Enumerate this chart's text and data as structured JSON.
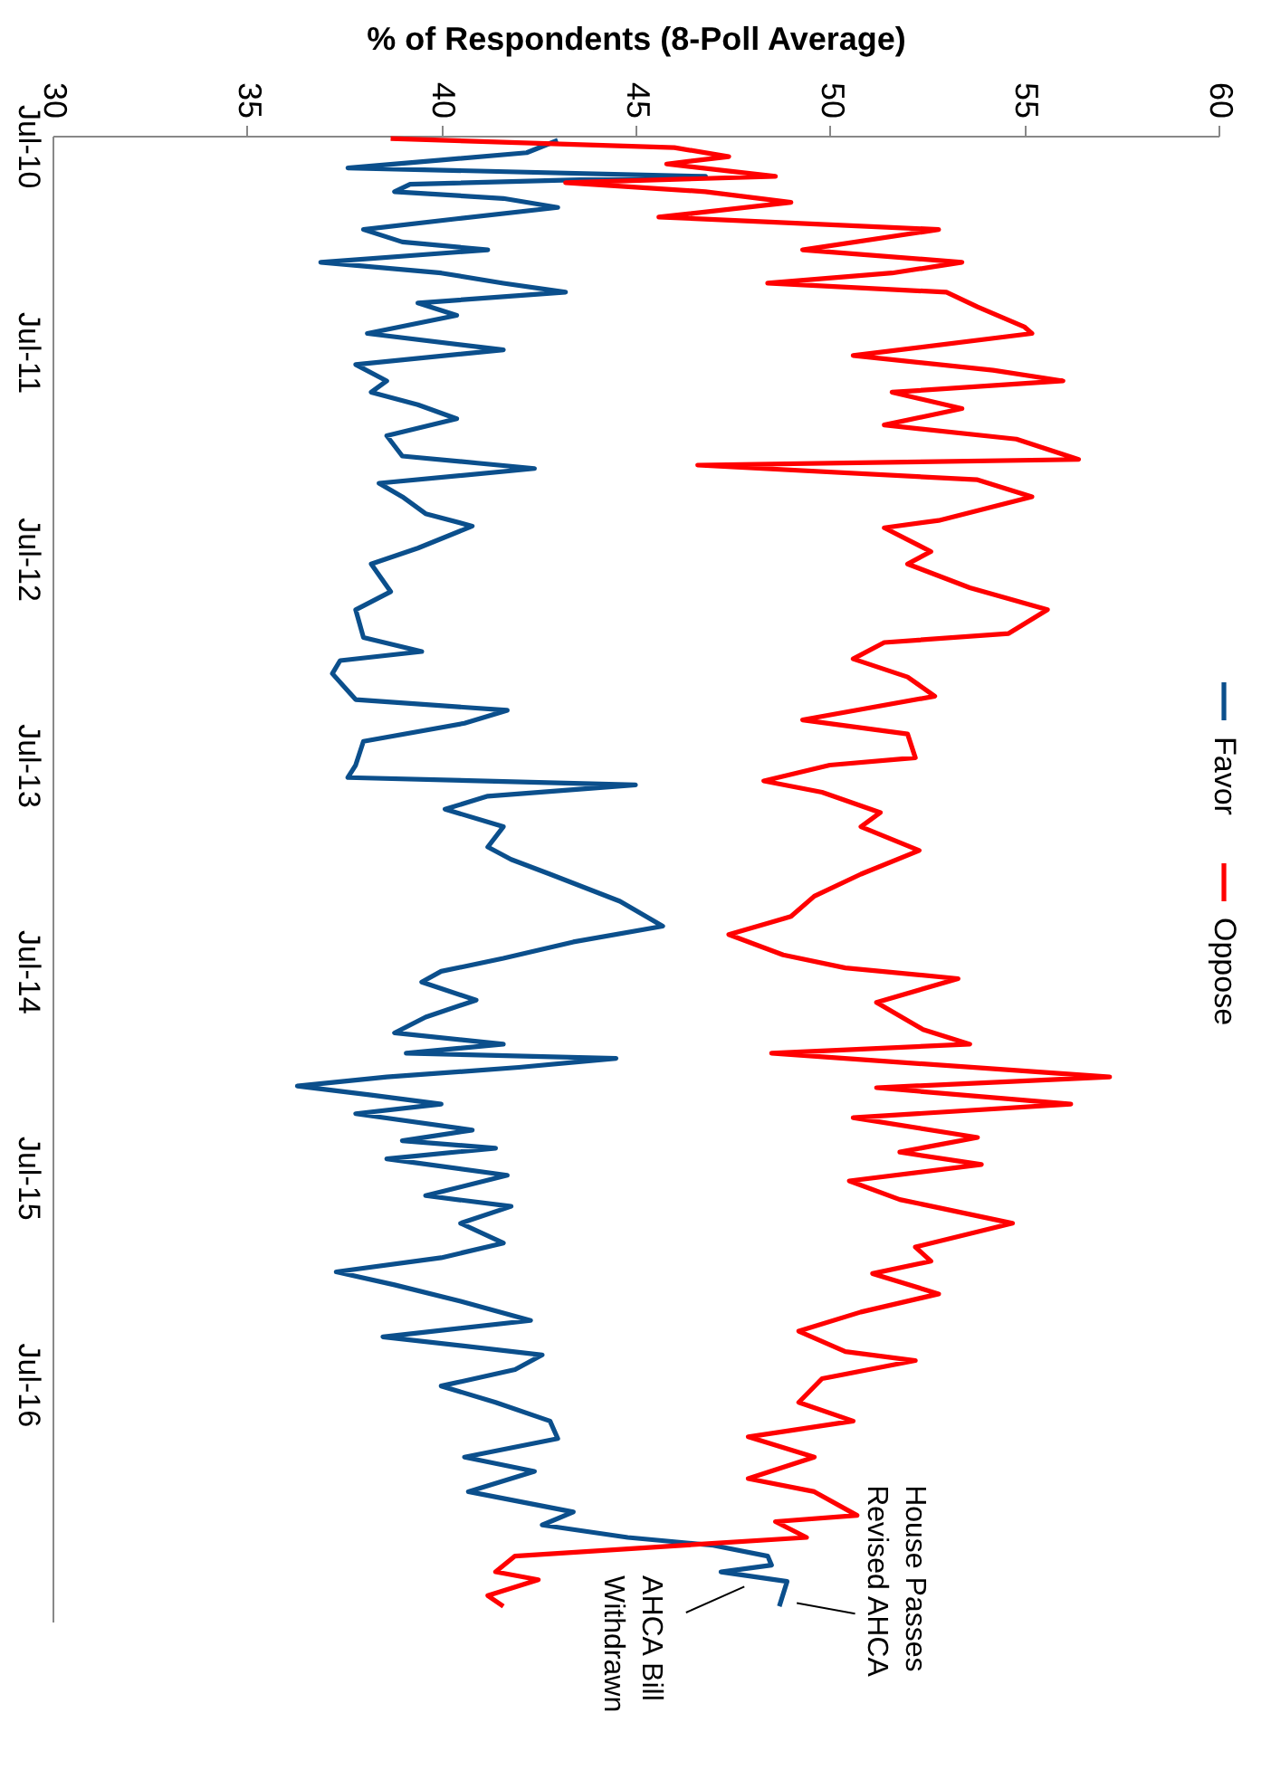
{
  "chart_data": {
    "type": "line",
    "orientation": "horizontal",
    "xlabel": "% of Respondents (8-Poll Average)",
    "xlim": [
      30,
      60
    ],
    "xticks": [
      30,
      35,
      40,
      45,
      50,
      55,
      60
    ],
    "ylim": [
      "2017-08-25",
      "2010-06-13"
    ],
    "yticks": [
      {
        "value": "2010-07-01",
        "label": "Jul-10"
      },
      {
        "value": "2011-07-01",
        "label": "Jul-11"
      },
      {
        "value": "2012-07-01",
        "label": "Jul-12"
      },
      {
        "value": "2013-07-01",
        "label": "Jul-13"
      },
      {
        "value": "2014-07-01",
        "label": "Jul-14"
      },
      {
        "value": "2015-07-01",
        "label": "Jul-15"
      },
      {
        "value": "2016-07-01",
        "label": "Jul-16"
      }
    ],
    "legend": "right",
    "marker": "none",
    "line_style": "solid",
    "series": [
      {
        "name": "Favor",
        "color": "#0b4f8c",
        "x": [
          "2010-06-21",
          "2010-07-13",
          "2010-07-26",
          "2010-08-09",
          "2010-08-24",
          "2010-09-07",
          "2010-09-20",
          "2010-10-02",
          "2010-10-18",
          "2010-11-07",
          "2010-11-26",
          "2010-12-18",
          "2011-01-01",
          "2011-01-23",
          "2011-02-11",
          "2011-03-01",
          "2011-03-17",
          "2011-04-05",
          "2011-04-27",
          "2011-05-29",
          "2011-06-27",
          "2011-07-23",
          "2011-08-21",
          "2011-09-10",
          "2011-10-02",
          "2011-10-27",
          "2011-11-26",
          "2012-01-01",
          "2012-01-23",
          "2012-02-18",
          "2012-03-13",
          "2012-04-12",
          "2012-05-04",
          "2012-06-12",
          "2012-07-10",
          "2012-08-28",
          "2012-09-29",
          "2012-11-17",
          "2012-12-12",
          "2012-12-28",
          "2013-01-20",
          "2013-03-07",
          "2013-03-26",
          "2013-04-18",
          "2013-05-20",
          "2013-07-01",
          "2013-07-23",
          "2013-08-05",
          "2013-08-25",
          "2013-09-17",
          "2013-10-18",
          "2013-11-23",
          "2013-12-15",
          "2014-01-10",
          "2014-02-27",
          "2014-04-12",
          "2014-05-10",
          "2014-06-08",
          "2014-07-01",
          "2014-07-20",
          "2014-08-21",
          "2014-09-20",
          "2014-10-18",
          "2014-11-07",
          "2014-11-23",
          "2014-12-02",
          "2014-12-18",
          "2015-01-04",
          "2015-01-20",
          "2015-02-05",
          "2015-02-21",
          "2015-03-10",
          "2015-04-08",
          "2015-04-27",
          "2015-05-10",
          "2015-05-29",
          "2015-06-27",
          "2015-08-02",
          "2015-08-21",
          "2015-09-20",
          "2015-10-25",
          "2015-11-20",
          "2015-12-15",
          "2016-01-07",
          "2016-02-05",
          "2016-03-10",
          "2016-04-08",
          "2016-05-10",
          "2016-06-05",
          "2016-07-04",
          "2016-08-02",
          "2016-09-04",
          "2016-10-05",
          "2016-11-07",
          "2016-12-02",
          "2017-01-07",
          "2017-02-12",
          "2017-03-07",
          "2017-03-29",
          "2017-04-12",
          "2017-05-01",
          "2017-05-17",
          "2017-05-29",
          "2017-06-15",
          "2017-07-29"
        ],
        "values": [
          43.0,
          42.2,
          40.0,
          37.6,
          46.8,
          39.2,
          38.8,
          41.6,
          43.0,
          40.4,
          38.0,
          39.0,
          41.2,
          36.9,
          40.0,
          41.6,
          43.2,
          39.4,
          40.4,
          38.1,
          41.6,
          37.8,
          38.6,
          38.2,
          39.4,
          40.4,
          38.6,
          39.0,
          42.4,
          38.4,
          39.0,
          39.6,
          40.8,
          39.4,
          38.2,
          38.7,
          37.8,
          38.0,
          39.5,
          37.4,
          37.2,
          37.8,
          41.7,
          40.6,
          38.0,
          37.8,
          37.6,
          45.0,
          41.2,
          40.1,
          41.6,
          41.2,
          41.8,
          42.8,
          44.6,
          45.7,
          43.4,
          41.6,
          40.0,
          39.5,
          40.9,
          39.6,
          38.8,
          41.6,
          39.1,
          44.5,
          42.0,
          38.6,
          36.3,
          38.2,
          40.0,
          37.8,
          40.8,
          39.0,
          41.4,
          38.6,
          41.7,
          39.6,
          41.8,
          40.5,
          41.6,
          40.0,
          37.3,
          38.8,
          40.5,
          42.3,
          38.5,
          42.6,
          41.9,
          40.0,
          41.4,
          42.8,
          43.0,
          40.6,
          42.4,
          40.7,
          43.4,
          42.6,
          44.8,
          47.0,
          48.4,
          48.5,
          47.2,
          48.9,
          48.7
        ]
      },
      {
        "name": "Oppose",
        "color": "#ff0000",
        "x": [
          "2010-06-18",
          "2010-07-04",
          "2010-07-20",
          "2010-08-02",
          "2010-08-24",
          "2010-09-04",
          "2010-09-20",
          "2010-10-09",
          "2010-11-04",
          "2010-11-26",
          "2011-01-01",
          "2011-01-23",
          "2011-02-11",
          "2011-03-01",
          "2011-03-17",
          "2011-04-12",
          "2011-05-17",
          "2011-05-29",
          "2011-07-07",
          "2011-08-02",
          "2011-08-21",
          "2011-09-10",
          "2011-10-09",
          "2011-11-07",
          "2011-12-02",
          "2012-01-07",
          "2012-01-17",
          "2012-02-12",
          "2012-03-13",
          "2012-04-24",
          "2012-05-07",
          "2012-06-18",
          "2012-07-10",
          "2012-08-21",
          "2012-09-29",
          "2012-11-10",
          "2012-11-26",
          "2012-12-25",
          "2013-01-26",
          "2013-03-01",
          "2013-04-12",
          "2013-05-07",
          "2013-06-18",
          "2013-07-01",
          "2013-07-29",
          "2013-08-18",
          "2013-09-23",
          "2013-10-18",
          "2013-11-29",
          "2014-01-10",
          "2014-02-18",
          "2014-03-26",
          "2014-04-27",
          "2014-06-02",
          "2014-06-25",
          "2014-07-14",
          "2014-08-25",
          "2014-10-12",
          "2014-11-07",
          "2014-11-23",
          "2015-01-04",
          "2015-01-23",
          "2015-02-21",
          "2015-03-17",
          "2015-04-21",
          "2015-05-17",
          "2015-06-08",
          "2015-07-07",
          "2015-08-09",
          "2015-09-20",
          "2015-11-01",
          "2015-11-26",
          "2015-12-18",
          "2016-01-23",
          "2016-02-24",
          "2016-03-29",
          "2016-05-04",
          "2016-05-20",
          "2016-06-21",
          "2016-08-02",
          "2016-09-04",
          "2016-10-02",
          "2016-11-07",
          "2016-12-15",
          "2017-01-07",
          "2017-02-18",
          "2017-03-01",
          "2017-03-29",
          "2017-05-01",
          "2017-05-29",
          "2017-06-12",
          "2017-07-10",
          "2017-07-29"
        ],
        "values": [
          38.7,
          46.0,
          47.4,
          45.8,
          48.6,
          43.2,
          46.8,
          49.0,
          45.6,
          52.8,
          49.3,
          53.4,
          51.6,
          48.4,
          53.0,
          53.8,
          55.0,
          55.2,
          50.6,
          54.2,
          56.0,
          51.6,
          53.4,
          51.4,
          54.8,
          56.4,
          46.6,
          53.8,
          55.2,
          52.8,
          51.4,
          52.6,
          52.0,
          53.6,
          55.6,
          54.6,
          51.4,
          50.6,
          52.0,
          52.7,
          49.3,
          52.0,
          52.2,
          50.0,
          48.3,
          49.8,
          51.3,
          50.8,
          52.3,
          50.8,
          49.6,
          49.0,
          47.4,
          48.8,
          50.4,
          53.3,
          51.2,
          52.4,
          53.6,
          48.5,
          57.2,
          51.2,
          56.2,
          50.6,
          53.8,
          51.8,
          53.9,
          50.5,
          51.8,
          54.7,
          52.2,
          52.6,
          51.1,
          52.8,
          50.8,
          49.2,
          50.4,
          52.2,
          49.8,
          49.2,
          50.6,
          47.9,
          49.6,
          47.9,
          49.6,
          50.7,
          48.6,
          49.4,
          41.9,
          41.4,
          42.5,
          41.2,
          41.6
        ]
      }
    ],
    "annotations": [
      {
        "text": "House Passes\nRevised AHCA",
        "x": 48.7,
        "y": "2017-07-29"
      },
      {
        "text": "AHCA Bill\nWithdrawn",
        "x": 47.2,
        "y": "2017-05-29"
      }
    ]
  }
}
